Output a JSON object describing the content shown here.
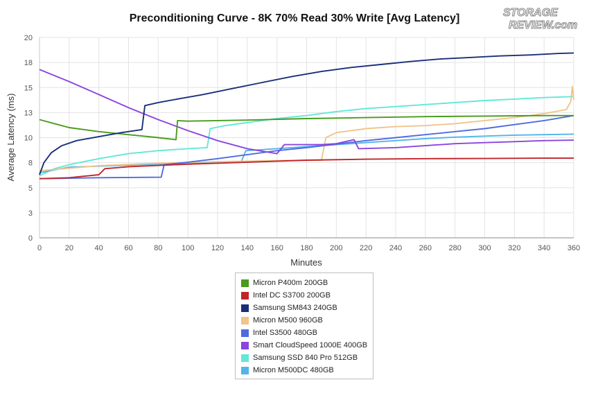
{
  "chart_data": {
    "type": "line",
    "title": "Preconditioning Curve - 8K 70% Read 30% Write [Avg Latency]",
    "xlabel": "Minutes",
    "ylabel": "Average Latency (ms)",
    "xlim": [
      0,
      360
    ],
    "ylim": [
      0,
      20
    ],
    "xticks": [
      0,
      20,
      40,
      60,
      80,
      100,
      120,
      140,
      160,
      180,
      200,
      220,
      240,
      260,
      280,
      300,
      320,
      340,
      360
    ],
    "yticks": [
      0,
      3,
      5,
      8,
      10,
      13,
      15,
      18,
      20
    ],
    "grid": true,
    "legend_position": "bottom-center",
    "series": [
      {
        "name": "Micron P400m 200GB",
        "color": "#4a9a1e",
        "points": [
          [
            0,
            11.8
          ],
          [
            10,
            11.4
          ],
          [
            20,
            11.0
          ],
          [
            40,
            10.6
          ],
          [
            60,
            10.3
          ],
          [
            80,
            10.0
          ],
          [
            92,
            9.8
          ],
          [
            93,
            11.7
          ],
          [
            100,
            11.65
          ],
          [
            140,
            11.75
          ],
          [
            180,
            11.9
          ],
          [
            220,
            12.0
          ],
          [
            260,
            12.1
          ],
          [
            300,
            12.15
          ],
          [
            340,
            12.2
          ],
          [
            360,
            12.2
          ]
        ]
      },
      {
        "name": "Intel DC S3700 200GB",
        "color": "#c0252a",
        "points": [
          [
            0,
            5.9
          ],
          [
            20,
            6.0
          ],
          [
            40,
            6.3
          ],
          [
            44,
            6.9
          ],
          [
            60,
            7.1
          ],
          [
            100,
            7.35
          ],
          [
            140,
            7.55
          ],
          [
            180,
            7.75
          ],
          [
            220,
            7.85
          ],
          [
            260,
            7.9
          ],
          [
            300,
            7.92
          ],
          [
            340,
            7.95
          ],
          [
            360,
            7.95
          ]
        ]
      },
      {
        "name": "Samsung SM843 240GB",
        "color": "#1a2f78",
        "points": [
          [
            0,
            6.3
          ],
          [
            3,
            7.5
          ],
          [
            8,
            8.5
          ],
          [
            15,
            9.2
          ],
          [
            25,
            9.7
          ],
          [
            40,
            10.1
          ],
          [
            55,
            10.5
          ],
          [
            69,
            10.8
          ],
          [
            71,
            13.2
          ],
          [
            80,
            13.5
          ],
          [
            95,
            13.9
          ],
          [
            110,
            14.3
          ],
          [
            130,
            14.9
          ],
          [
            150,
            15.5
          ],
          [
            170,
            16.1
          ],
          [
            190,
            16.6
          ],
          [
            210,
            17.0
          ],
          [
            230,
            17.3
          ],
          [
            250,
            17.6
          ],
          [
            270,
            17.85
          ],
          [
            290,
            18.0
          ],
          [
            310,
            18.15
          ],
          [
            330,
            18.25
          ],
          [
            350,
            18.4
          ],
          [
            360,
            18.45
          ]
        ]
      },
      {
        "name": "Micron M500 960GB",
        "color": "#f0c48a",
        "points": [
          [
            0,
            6.7
          ],
          [
            40,
            7.2
          ],
          [
            80,
            7.45
          ],
          [
            120,
            7.6
          ],
          [
            160,
            7.7
          ],
          [
            190,
            7.75
          ],
          [
            193,
            10.0
          ],
          [
            200,
            10.5
          ],
          [
            220,
            10.9
          ],
          [
            240,
            11.1
          ],
          [
            260,
            11.2
          ],
          [
            280,
            11.4
          ],
          [
            300,
            11.7
          ],
          [
            320,
            12.0
          ],
          [
            340,
            12.4
          ],
          [
            355,
            12.8
          ],
          [
            358,
            13.6
          ],
          [
            359,
            15.1
          ],
          [
            360,
            13.8
          ]
        ]
      },
      {
        "name": "Intel S3500 480GB",
        "color": "#4f6be0",
        "points": [
          [
            0,
            5.9
          ],
          [
            40,
            6.0
          ],
          [
            82,
            6.05
          ],
          [
            84,
            7.3
          ],
          [
            100,
            7.55
          ],
          [
            120,
            7.9
          ],
          [
            140,
            8.3
          ],
          [
            160,
            8.7
          ],
          [
            180,
            9.0
          ],
          [
            200,
            9.35
          ],
          [
            220,
            9.7
          ],
          [
            240,
            10.0
          ],
          [
            260,
            10.3
          ],
          [
            280,
            10.6
          ],
          [
            300,
            10.9
          ],
          [
            320,
            11.3
          ],
          [
            340,
            11.7
          ],
          [
            360,
            12.2
          ]
        ]
      },
      {
        "name": "Smart CloudSpeed 1000E 400GB",
        "color": "#8a44e0",
        "points": [
          [
            0,
            16.8
          ],
          [
            20,
            15.6
          ],
          [
            40,
            14.3
          ],
          [
            60,
            13.0
          ],
          [
            80,
            11.8
          ],
          [
            100,
            10.7
          ],
          [
            120,
            9.7
          ],
          [
            140,
            8.9
          ],
          [
            160,
            8.4
          ],
          [
            165,
            9.3
          ],
          [
            190,
            9.3
          ],
          [
            200,
            9.4
          ],
          [
            212,
            9.8
          ],
          [
            215,
            8.9
          ],
          [
            240,
            9.0
          ],
          [
            260,
            9.2
          ],
          [
            280,
            9.4
          ],
          [
            300,
            9.5
          ],
          [
            320,
            9.6
          ],
          [
            340,
            9.7
          ],
          [
            360,
            9.75
          ]
        ]
      },
      {
        "name": "Samsung SSD 840 Pro 512GB",
        "color": "#60e8d8",
        "points": [
          [
            0,
            6.2
          ],
          [
            10,
            6.9
          ],
          [
            20,
            7.3
          ],
          [
            40,
            7.9
          ],
          [
            60,
            8.4
          ],
          [
            80,
            8.7
          ],
          [
            100,
            8.9
          ],
          [
            113,
            9.0
          ],
          [
            115,
            10.9
          ],
          [
            125,
            11.2
          ],
          [
            140,
            11.5
          ],
          [
            160,
            11.9
          ],
          [
            180,
            12.2
          ],
          [
            200,
            12.6
          ],
          [
            220,
            12.9
          ],
          [
            240,
            13.1
          ],
          [
            260,
            13.3
          ],
          [
            280,
            13.5
          ],
          [
            300,
            13.7
          ],
          [
            320,
            13.85
          ],
          [
            340,
            14.0
          ],
          [
            360,
            14.1
          ]
        ]
      },
      {
        "name": "Micron M500DC 480GB",
        "color": "#52b4ea",
        "points": [
          [
            0,
            6.5
          ],
          [
            20,
            7.05
          ],
          [
            60,
            7.25
          ],
          [
            100,
            7.45
          ],
          [
            136,
            7.6
          ],
          [
            139,
            8.7
          ],
          [
            160,
            8.9
          ],
          [
            180,
            9.1
          ],
          [
            200,
            9.3
          ],
          [
            220,
            9.5
          ],
          [
            240,
            9.7
          ],
          [
            260,
            9.9
          ],
          [
            280,
            10.05
          ],
          [
            300,
            10.15
          ],
          [
            320,
            10.25
          ],
          [
            340,
            10.3
          ],
          [
            360,
            10.35
          ]
        ]
      }
    ]
  },
  "watermark": {
    "line1": "STORAGE",
    "line2": "REVIEW.com"
  }
}
